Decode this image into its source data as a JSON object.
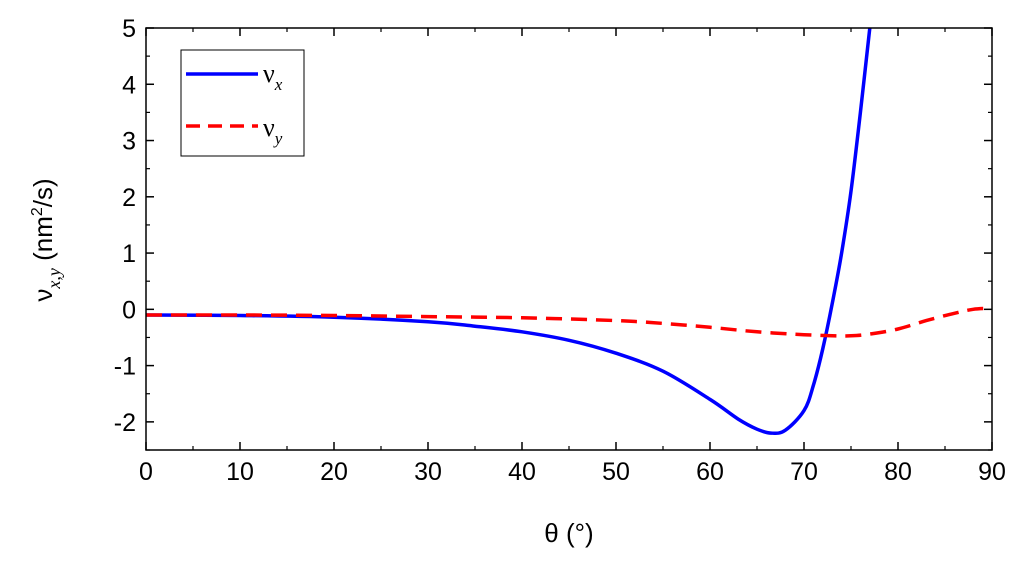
{
  "chart_data": {
    "type": "line",
    "xlabel": "θ (°)",
    "ylabel": {
      "symbol": "ν",
      "subscript": "x,y",
      "unit_prefix": "(nm",
      "unit_power": "2",
      "unit_suffix": "/s)"
    },
    "xlim": [
      0,
      90
    ],
    "ylim": [
      -2.5,
      5
    ],
    "x_ticks": [
      0,
      10,
      20,
      30,
      40,
      50,
      60,
      70,
      80,
      90
    ],
    "y_ticks": [
      -2,
      -1,
      0,
      1,
      2,
      3,
      4,
      5
    ],
    "grid": false,
    "legend_position": "top-left",
    "series": [
      {
        "name": "ν",
        "subscript": "x",
        "color": "#0000ff",
        "style": "solid",
        "x": [
          0,
          10,
          20,
          30,
          35,
          40,
          45,
          50,
          55,
          60,
          63,
          65,
          66.5,
          68,
          70,
          71,
          72,
          73,
          74,
          75,
          76,
          77
        ],
        "y": [
          -0.1,
          -0.11,
          -0.14,
          -0.22,
          -0.3,
          -0.4,
          -0.55,
          -0.78,
          -1.1,
          -1.6,
          -1.95,
          -2.13,
          -2.2,
          -2.15,
          -1.8,
          -1.35,
          -0.7,
          0.1,
          1.0,
          2.1,
          3.5,
          5.0
        ]
      },
      {
        "name": "ν",
        "subscript": "y",
        "color": "#ff0000",
        "style": "dashed",
        "x": [
          0,
          10,
          20,
          30,
          40,
          50,
          55,
          60,
          65,
          70,
          73,
          75,
          77,
          80,
          83,
          86,
          88,
          90
        ],
        "y": [
          -0.1,
          -0.1,
          -0.11,
          -0.13,
          -0.15,
          -0.2,
          -0.25,
          -0.32,
          -0.4,
          -0.45,
          -0.47,
          -0.47,
          -0.44,
          -0.35,
          -0.2,
          -0.07,
          0.0,
          0.02
        ]
      }
    ]
  }
}
